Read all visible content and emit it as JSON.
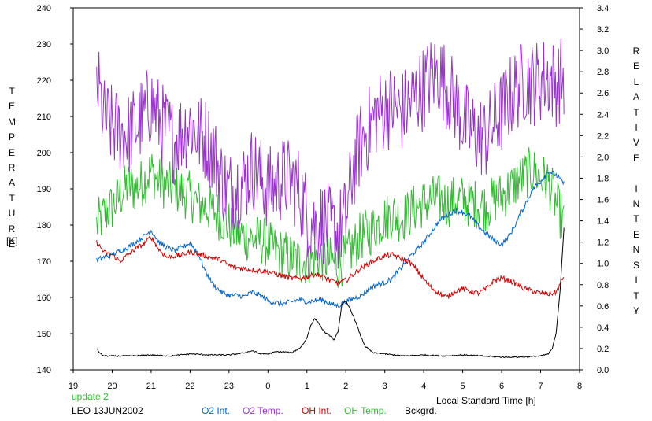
{
  "chart_data": {
    "type": "line",
    "left_axis_label": "TEMPERATURE",
    "left_axis_unit": "[K]",
    "right_axis_label": "RELATIVE INTENSITY",
    "xlabel": "Local Standard Time [h]",
    "update_label": "update 2",
    "station_date": "LEO 13JUN2002",
    "left_ylim": [
      140,
      240
    ],
    "left_yticks": [
      "140",
      "150",
      "160",
      "170",
      "180",
      "190",
      "200",
      "210",
      "220",
      "230",
      "240"
    ],
    "right_ylim": [
      0.0,
      3.4
    ],
    "right_yticks": [
      "0.0",
      "0.2",
      "0.4",
      "0.6",
      "0.8",
      "1.0",
      "1.2",
      "1.4",
      "1.6",
      "1.8",
      "2.0",
      "2.2",
      "2.4",
      "2.6",
      "2.8",
      "3.0",
      "3.2",
      "3.4"
    ],
    "xlim": [
      19,
      32
    ],
    "xticks": [
      19,
      20,
      21,
      22,
      23,
      24,
      25,
      26,
      27,
      28,
      29,
      30,
      31,
      32
    ],
    "xtick_labels": [
      "19",
      "20",
      "21",
      "22",
      "23",
      "0",
      "1",
      "2",
      "3",
      "4",
      "5",
      "6",
      "7",
      "8"
    ],
    "grid": false,
    "series": [
      {
        "name": "O2 Int.",
        "axis": "right",
        "color": "#0066cc",
        "style": "noisy-small",
        "x": [
          19.6,
          19.8,
          20.0,
          20.2,
          20.4,
          20.6,
          20.8,
          21.0,
          21.2,
          21.4,
          21.6,
          21.8,
          22.0,
          22.2,
          22.4,
          22.6,
          22.8,
          23.0,
          23.2,
          23.4,
          23.6,
          23.8,
          24.0,
          24.2,
          24.4,
          24.6,
          24.8,
          25.0,
          25.2,
          25.4,
          25.6,
          25.8,
          26.0,
          26.2,
          26.4,
          26.6,
          26.8,
          27.0,
          27.2,
          27.4,
          27.6,
          27.8,
          28.0,
          28.2,
          28.4,
          28.6,
          28.8,
          29.0,
          29.2,
          29.4,
          29.6,
          29.8,
          30.0,
          30.2,
          30.4,
          30.6,
          30.8,
          31.0,
          31.2,
          31.4,
          31.6
        ],
        "y": [
          1.03,
          1.06,
          1.08,
          1.12,
          1.15,
          1.2,
          1.25,
          1.31,
          1.2,
          1.15,
          1.12,
          1.15,
          1.19,
          1.1,
          0.92,
          0.8,
          0.73,
          0.7,
          0.7,
          0.69,
          0.73,
          0.7,
          0.65,
          0.63,
          0.62,
          0.64,
          0.66,
          0.64,
          0.65,
          0.66,
          0.62,
          0.6,
          0.64,
          0.67,
          0.7,
          0.76,
          0.8,
          0.82,
          0.86,
          0.95,
          1.05,
          1.12,
          1.2,
          1.3,
          1.4,
          1.45,
          1.5,
          1.48,
          1.44,
          1.35,
          1.28,
          1.22,
          1.18,
          1.26,
          1.4,
          1.55,
          1.7,
          1.77,
          1.87,
          1.83,
          1.75
        ]
      },
      {
        "name": "O2 Temp.",
        "axis": "left",
        "color": "#9933cc",
        "style": "noisy-large",
        "x": [
          19.6,
          19.8,
          20.0,
          20.2,
          20.4,
          20.6,
          20.8,
          21.0,
          21.2,
          21.4,
          21.6,
          21.8,
          22.0,
          22.2,
          22.4,
          22.6,
          22.8,
          23.0,
          23.2,
          23.4,
          23.6,
          23.8,
          24.0,
          24.2,
          24.4,
          24.6,
          24.8,
          25.0,
          25.2,
          25.4,
          25.6,
          25.8,
          26.0,
          26.2,
          26.4,
          26.6,
          26.8,
          27.0,
          27.2,
          27.4,
          27.6,
          27.8,
          28.0,
          28.2,
          28.4,
          28.6,
          28.8,
          29.0,
          29.2,
          29.4,
          29.6,
          29.8,
          30.0,
          30.2,
          30.4,
          30.6,
          30.8,
          31.0,
          31.2,
          31.4,
          31.6
        ],
        "y": [
          220,
          209,
          207,
          206,
          205,
          207,
          210,
          214,
          209,
          206,
          203,
          206,
          208,
          205,
          204,
          200,
          193,
          189,
          191,
          192,
          196,
          193,
          190,
          191,
          193,
          192,
          190,
          183,
          180,
          181,
          179,
          178,
          182,
          196,
          203,
          207,
          211,
          212,
          213,
          211,
          213,
          216,
          218,
          221,
          222,
          218,
          214,
          209,
          206,
          205,
          204,
          208,
          211,
          215,
          218,
          220,
          219,
          220,
          221,
          219,
          221
        ]
      },
      {
        "name": "OH Int.",
        "axis": "right",
        "color": "#cc0000",
        "style": "noisy-small",
        "x": [
          19.6,
          19.8,
          20.0,
          20.2,
          20.4,
          20.6,
          20.8,
          21.0,
          21.2,
          21.4,
          21.6,
          21.8,
          22.0,
          22.2,
          22.4,
          22.6,
          22.8,
          23.0,
          23.2,
          23.4,
          23.6,
          23.8,
          24.0,
          24.2,
          24.4,
          24.6,
          24.8,
          25.0,
          25.2,
          25.4,
          25.6,
          25.8,
          26.0,
          26.2,
          26.4,
          26.6,
          26.8,
          27.0,
          27.2,
          27.4,
          27.6,
          27.8,
          28.0,
          28.2,
          28.4,
          28.6,
          28.8,
          29.0,
          29.2,
          29.4,
          29.6,
          29.8,
          30.0,
          30.2,
          30.4,
          30.6,
          30.8,
          31.0,
          31.2,
          31.4,
          31.6
        ],
        "y": [
          1.2,
          1.1,
          1.08,
          1.02,
          1.08,
          1.14,
          1.18,
          1.25,
          1.13,
          1.06,
          1.07,
          1.08,
          1.11,
          1.09,
          1.07,
          1.05,
          1.03,
          0.98,
          0.96,
          0.95,
          0.94,
          0.93,
          0.92,
          0.9,
          0.88,
          0.86,
          0.86,
          0.87,
          0.9,
          0.88,
          0.84,
          0.82,
          0.84,
          0.9,
          0.96,
          1.0,
          1.04,
          1.07,
          1.08,
          1.05,
          1.02,
          0.95,
          0.85,
          0.77,
          0.72,
          0.68,
          0.74,
          0.76,
          0.74,
          0.72,
          0.76,
          0.84,
          0.86,
          0.84,
          0.8,
          0.76,
          0.74,
          0.72,
          0.71,
          0.73,
          0.88
        ]
      },
      {
        "name": "OH Temp.",
        "axis": "left",
        "color": "#33bb33",
        "style": "noisy-large",
        "x": [
          19.6,
          19.8,
          20.0,
          20.2,
          20.4,
          20.6,
          20.8,
          21.0,
          21.2,
          21.4,
          21.6,
          21.8,
          22.0,
          22.2,
          22.4,
          22.6,
          22.8,
          23.0,
          23.2,
          23.4,
          23.6,
          23.8,
          24.0,
          24.2,
          24.4,
          24.6,
          24.8,
          25.0,
          25.2,
          25.4,
          25.6,
          25.8,
          26.0,
          26.2,
          26.4,
          26.6,
          26.8,
          27.0,
          27.2,
          27.4,
          27.6,
          27.8,
          28.0,
          28.2,
          28.4,
          28.6,
          28.8,
          29.0,
          29.2,
          29.4,
          29.6,
          29.8,
          30.0,
          30.2,
          30.4,
          30.6,
          30.8,
          31.0,
          31.2,
          31.4,
          31.6
        ],
        "y": [
          180,
          183,
          185,
          188,
          191,
          190,
          192,
          195,
          192,
          191,
          190,
          189,
          188,
          186,
          185,
          184,
          182,
          180,
          178,
          177,
          176,
          176,
          175,
          173,
          172,
          171,
          170,
          170,
          171,
          171,
          170,
          169,
          171,
          174,
          177,
          178,
          180,
          182,
          183,
          182,
          183,
          185,
          186,
          187,
          187,
          186,
          187,
          187,
          186,
          186,
          185,
          187,
          188,
          190,
          192,
          194,
          195,
          193,
          192,
          186,
          180
        ]
      },
      {
        "name": "Bckgrd.",
        "axis": "right",
        "color": "#000000",
        "style": "smooth",
        "x": [
          19.6,
          19.7,
          19.8,
          20.0,
          20.5,
          21.0,
          21.5,
          22.0,
          22.5,
          23.0,
          23.4,
          23.6,
          23.8,
          24.0,
          24.2,
          24.4,
          24.6,
          24.8,
          24.9,
          25.0,
          25.1,
          25.2,
          25.3,
          25.4,
          25.5,
          25.6,
          25.7,
          25.8,
          25.9,
          26.0,
          26.1,
          26.2,
          26.3,
          26.4,
          26.5,
          26.7,
          27.0,
          27.5,
          28.0,
          28.5,
          29.0,
          29.5,
          30.0,
          30.5,
          31.0,
          31.2,
          31.3,
          31.4,
          31.5,
          31.6
        ],
        "y": [
          0.2,
          0.15,
          0.13,
          0.13,
          0.13,
          0.14,
          0.13,
          0.15,
          0.14,
          0.14,
          0.16,
          0.18,
          0.15,
          0.15,
          0.17,
          0.17,
          0.16,
          0.2,
          0.24,
          0.3,
          0.42,
          0.48,
          0.44,
          0.38,
          0.34,
          0.32,
          0.28,
          0.36,
          0.62,
          0.64,
          0.58,
          0.5,
          0.4,
          0.3,
          0.22,
          0.16,
          0.15,
          0.13,
          0.14,
          0.13,
          0.14,
          0.13,
          0.12,
          0.12,
          0.13,
          0.15,
          0.2,
          0.35,
          0.75,
          1.33
        ]
      }
    ]
  }
}
